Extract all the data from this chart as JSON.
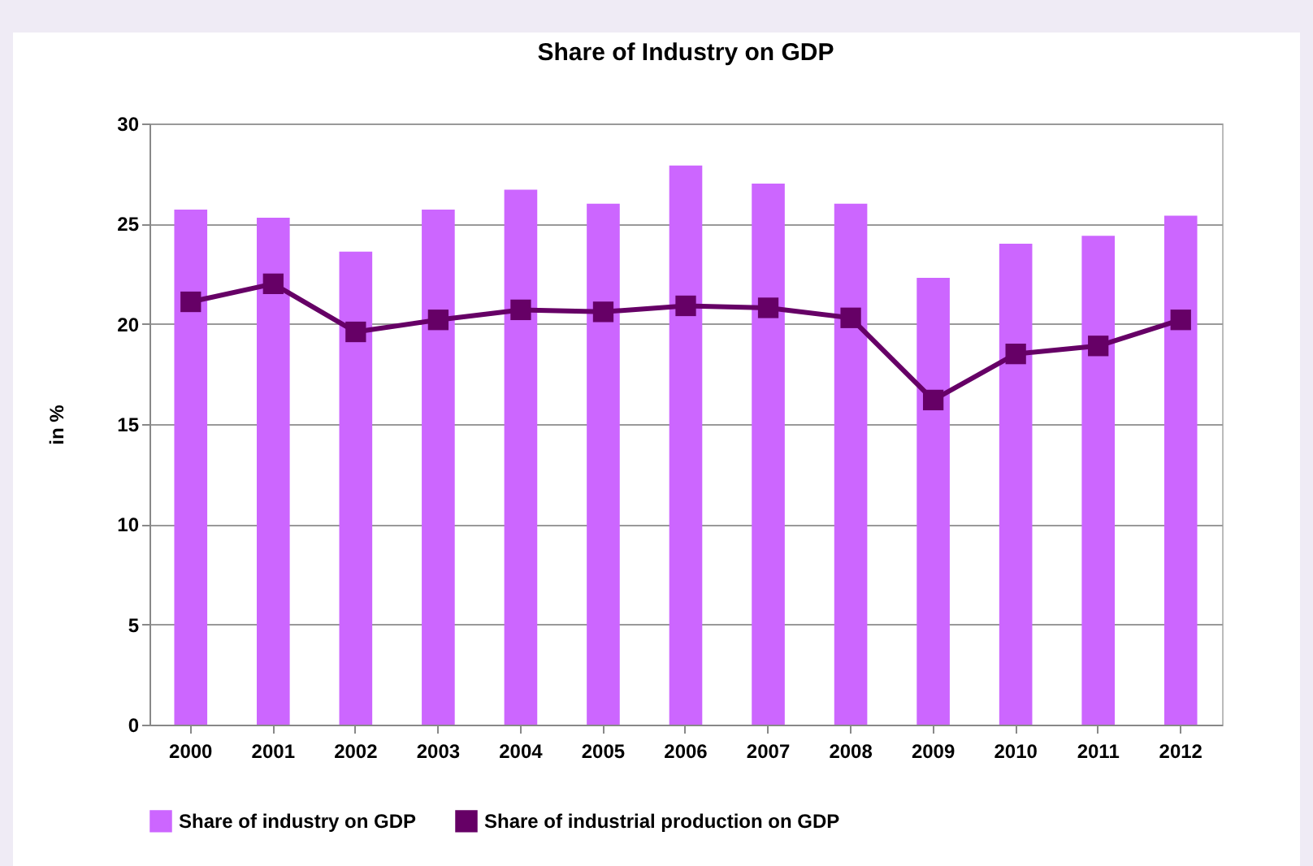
{
  "chart_data": {
    "type": "bar",
    "title": "Share of Industry on GDP",
    "ylabel": "in %",
    "categories": [
      "2000",
      "2001",
      "2002",
      "2003",
      "2004",
      "2005",
      "2006",
      "2007",
      "2008",
      "2009",
      "2010",
      "2011",
      "2012"
    ],
    "series": [
      {
        "name": "Share of industry on GDP",
        "color": "#cc66ff",
        "values": [
          25.7,
          25.3,
          23.6,
          25.7,
          26.7,
          26.0,
          27.9,
          27.0,
          26.0,
          22.3,
          24.0,
          24.4,
          25.4
        ]
      },
      {
        "name": "Share of industrial production on GDP",
        "type": "line",
        "color": "#660066",
        "marker": "square",
        "values": [
          21.1,
          22.0,
          19.6,
          20.2,
          20.7,
          20.6,
          20.9,
          20.8,
          20.3,
          16.2,
          18.5,
          18.9,
          20.2
        ]
      }
    ],
    "ylim": [
      0,
      30
    ],
    "yticks": [
      0,
      5,
      10,
      15,
      20,
      25,
      30
    ],
    "grid": "y",
    "legend": "bottom"
  }
}
